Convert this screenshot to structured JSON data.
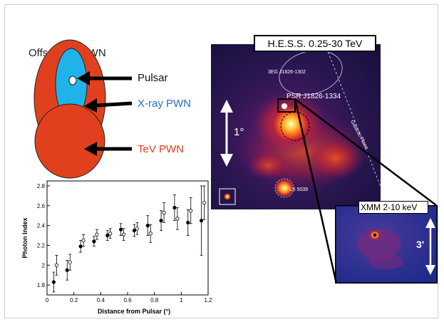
{
  "schematic": {
    "title": "Offset TeV PWN",
    "labels": {
      "pulsar": "Pulsar",
      "xray": "X-ray PWN",
      "tev": "TeV PWN"
    },
    "colors": {
      "tev_fill": "#e1401e",
      "xray_fill": "#1fb3ea",
      "xray_text": "#1f6fd0",
      "tev_text": "#e1401e"
    }
  },
  "hess_panel": {
    "label": "H.E.S.S. 0.25-30 TeV",
    "source_3eg": "3EG J1826-1302",
    "pulsar_label": "PSR J1826-1334",
    "galactic_plane": "Galactic Plane",
    "ls_label": "LS 5039",
    "scale": "1°"
  },
  "xmm_panel": {
    "label": "XMM 2-10 keV",
    "scale": "3'"
  },
  "chart_data": {
    "type": "scatter",
    "xlabel": "Distance from Pulsar (°)",
    "ylabel": "Photon Index",
    "xlim": [
      0,
      1.2
    ],
    "ylim": [
      1.7,
      2.85
    ],
    "xticks": [
      "0",
      "0.2",
      "0.4",
      "0.6",
      "0.8",
      "1",
      "1.2"
    ],
    "yticks": [
      "1.8",
      "2",
      "2.2",
      "2.4",
      "2.6",
      "2.8"
    ],
    "series": [
      {
        "marker": "filled",
        "points": [
          {
            "x": 0.05,
            "y": 1.83,
            "err": 0.1
          },
          {
            "x": 0.15,
            "y": 1.95,
            "err": 0.1
          },
          {
            "x": 0.25,
            "y": 2.19,
            "err": 0.06
          },
          {
            "x": 0.35,
            "y": 2.24,
            "err": 0.05
          },
          {
            "x": 0.45,
            "y": 2.3,
            "err": 0.05
          },
          {
            "x": 0.55,
            "y": 2.36,
            "err": 0.06
          },
          {
            "x": 0.65,
            "y": 2.35,
            "err": 0.06
          },
          {
            "x": 0.75,
            "y": 2.4,
            "err": 0.1
          },
          {
            "x": 0.85,
            "y": 2.45,
            "err": 0.1
          },
          {
            "x": 0.95,
            "y": 2.58,
            "err": 0.13
          },
          {
            "x": 1.05,
            "y": 2.43,
            "err": 0.13
          },
          {
            "x": 1.15,
            "y": 2.45,
            "err": 0.35
          }
        ]
      },
      {
        "marker": "open",
        "points": [
          {
            "x": 0.05,
            "y": 2.0,
            "err": 0.1
          },
          {
            "x": 0.15,
            "y": 2.03,
            "err": 0.08
          },
          {
            "x": 0.25,
            "y": 2.25,
            "err": 0.06
          },
          {
            "x": 0.35,
            "y": 2.31,
            "err": 0.05
          },
          {
            "x": 0.45,
            "y": 2.32,
            "err": 0.05
          },
          {
            "x": 0.55,
            "y": 2.31,
            "err": 0.06
          },
          {
            "x": 0.65,
            "y": 2.37,
            "err": 0.06
          },
          {
            "x": 0.75,
            "y": 2.32,
            "err": 0.09
          },
          {
            "x": 0.85,
            "y": 2.53,
            "err": 0.1
          },
          {
            "x": 0.95,
            "y": 2.47,
            "err": 0.11
          },
          {
            "x": 1.05,
            "y": 2.55,
            "err": 0.13
          },
          {
            "x": 1.15,
            "y": 2.63,
            "err": 0.17
          }
        ]
      }
    ]
  }
}
